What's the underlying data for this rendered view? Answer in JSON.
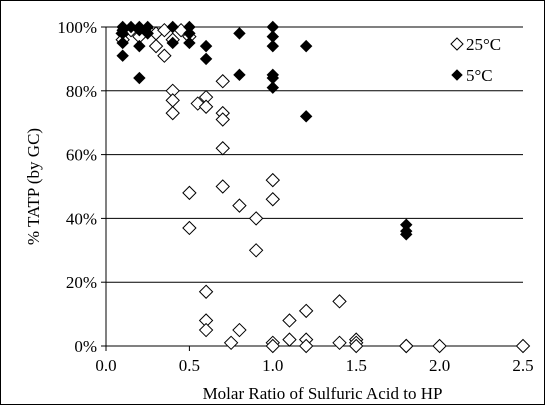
{
  "chart_data": {
    "type": "scatter",
    "xlabel": "Molar Ratio of Sulfuric Acid to HP",
    "ylabel": "% TATP (by GC)",
    "xlim": [
      0,
      2.5
    ],
    "ylim": [
      0,
      100
    ],
    "x_ticks": [
      "0.0",
      "0.5",
      "1.0",
      "1.5",
      "2.0",
      "2.5"
    ],
    "y_ticks": [
      "0%",
      "20%",
      "40%",
      "60%",
      "80%",
      "100%"
    ],
    "grid": "horizontal",
    "legend_position": "top-right",
    "series": [
      {
        "name": "25°C",
        "marker": "open-diamond",
        "color": "#000000",
        "points": [
          [
            0.1,
            98
          ],
          [
            0.1,
            96
          ],
          [
            0.15,
            99
          ],
          [
            0.2,
            97
          ],
          [
            0.25,
            99
          ],
          [
            0.3,
            98
          ],
          [
            0.3,
            94
          ],
          [
            0.35,
            99
          ],
          [
            0.35,
            91
          ],
          [
            0.4,
            96
          ],
          [
            0.4,
            80
          ],
          [
            0.4,
            77
          ],
          [
            0.4,
            73
          ],
          [
            0.45,
            99
          ],
          [
            0.5,
            97
          ],
          [
            0.5,
            48
          ],
          [
            0.5,
            37
          ],
          [
            0.55,
            76
          ],
          [
            0.6,
            78
          ],
          [
            0.6,
            75
          ],
          [
            0.6,
            17
          ],
          [
            0.6,
            8
          ],
          [
            0.6,
            5
          ],
          [
            0.7,
            83
          ],
          [
            0.7,
            73
          ],
          [
            0.7,
            71
          ],
          [
            0.7,
            62
          ],
          [
            0.7,
            50
          ],
          [
            0.75,
            1
          ],
          [
            0.8,
            44
          ],
          [
            0.8,
            5
          ],
          [
            0.9,
            40
          ],
          [
            0.9,
            30
          ],
          [
            1.0,
            52
          ],
          [
            1.0,
            46
          ],
          [
            1.0,
            1
          ],
          [
            1.0,
            0
          ],
          [
            1.1,
            8
          ],
          [
            1.1,
            2
          ],
          [
            1.2,
            11
          ],
          [
            1.2,
            2
          ],
          [
            1.2,
            0
          ],
          [
            1.4,
            14
          ],
          [
            1.4,
            1
          ],
          [
            1.5,
            2
          ],
          [
            1.5,
            1
          ],
          [
            1.5,
            0
          ],
          [
            1.8,
            0
          ],
          [
            1.8,
            0
          ],
          [
            2.0,
            0
          ],
          [
            2.5,
            0
          ]
        ]
      },
      {
        "name": "5°C",
        "marker": "filled-diamond",
        "color": "#000000",
        "points": [
          [
            0.1,
            100
          ],
          [
            0.1,
            99
          ],
          [
            0.1,
            98
          ],
          [
            0.1,
            95
          ],
          [
            0.1,
            91
          ],
          [
            0.15,
            100
          ],
          [
            0.2,
            100
          ],
          [
            0.2,
            99
          ],
          [
            0.2,
            94
          ],
          [
            0.2,
            84
          ],
          [
            0.25,
            100
          ],
          [
            0.25,
            98
          ],
          [
            0.4,
            100
          ],
          [
            0.4,
            95
          ],
          [
            0.5,
            100
          ],
          [
            0.5,
            98
          ],
          [
            0.5,
            95
          ],
          [
            0.6,
            94
          ],
          [
            0.6,
            90
          ],
          [
            0.8,
            98
          ],
          [
            0.8,
            85
          ],
          [
            1.0,
            100
          ],
          [
            1.0,
            97
          ],
          [
            1.0,
            94
          ],
          [
            1.0,
            85
          ],
          [
            1.0,
            84
          ],
          [
            1.0,
            81
          ],
          [
            1.2,
            94
          ],
          [
            1.2,
            72
          ],
          [
            1.8,
            38
          ],
          [
            1.8,
            36
          ],
          [
            1.8,
            35
          ]
        ]
      }
    ]
  }
}
